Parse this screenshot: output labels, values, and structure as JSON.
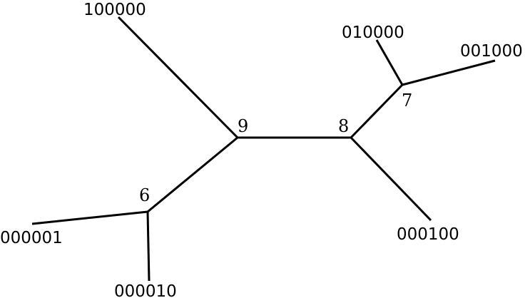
{
  "diagram": {
    "type": "unrooted-phylogenetic-tree",
    "line_color": "#000000",
    "background_color": "#ffffff",
    "internal_nodes": [
      {
        "id": "6",
        "label": "6"
      },
      {
        "id": "7",
        "label": "7"
      },
      {
        "id": "8",
        "label": "8"
      },
      {
        "id": "9",
        "label": "9"
      }
    ],
    "leaves": [
      {
        "id": "100000",
        "label": "100000"
      },
      {
        "id": "010000",
        "label": "010000"
      },
      {
        "id": "001000",
        "label": "001000"
      },
      {
        "id": "000100",
        "label": "000100"
      },
      {
        "id": "000001",
        "label": "000001"
      },
      {
        "id": "000010",
        "label": "000010"
      }
    ],
    "edges": [
      {
        "from": "9",
        "to": "100000"
      },
      {
        "from": "9",
        "to": "8"
      },
      {
        "from": "9",
        "to": "6"
      },
      {
        "from": "8",
        "to": "7"
      },
      {
        "from": "8",
        "to": "000100"
      },
      {
        "from": "7",
        "to": "010000"
      },
      {
        "from": "7",
        "to": "001000"
      },
      {
        "from": "6",
        "to": "000001"
      },
      {
        "from": "6",
        "to": "000010"
      }
    ]
  }
}
